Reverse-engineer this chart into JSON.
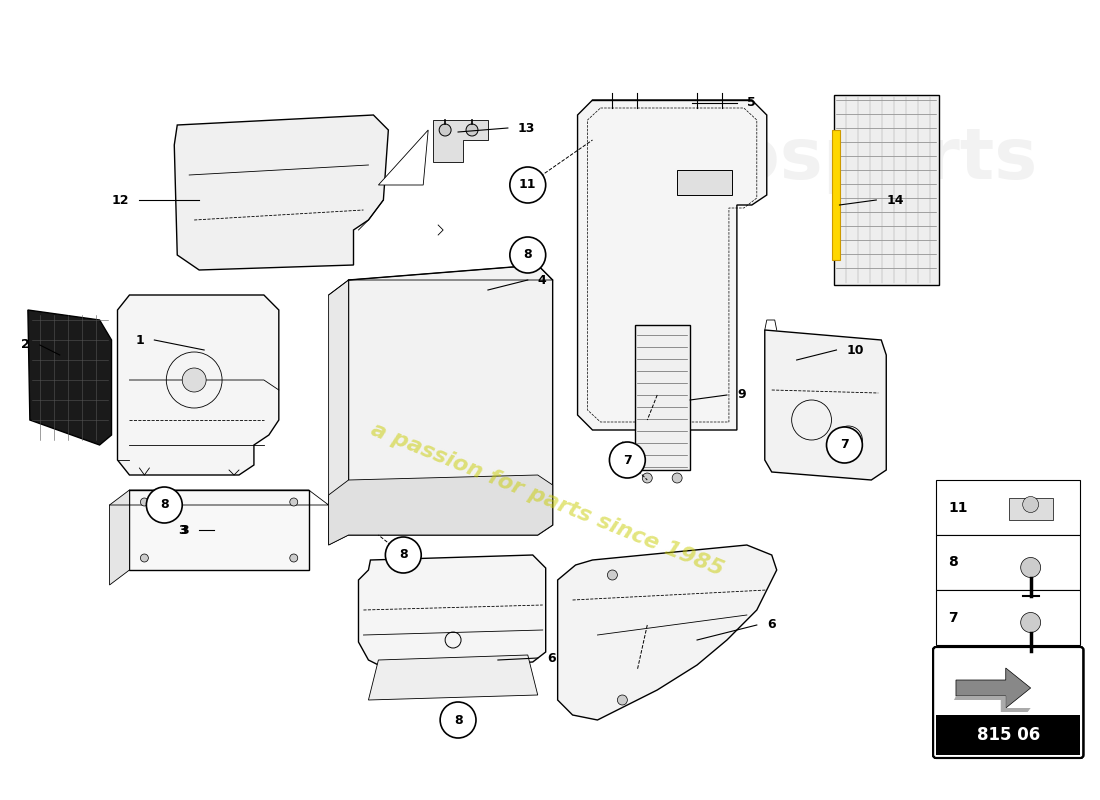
{
  "background_color": "#ffffff",
  "watermark_text": "a passion for parts since 1985",
  "part_number_text": "815 06",
  "fig_width": 11.0,
  "fig_height": 8.0,
  "dpi": 100
}
